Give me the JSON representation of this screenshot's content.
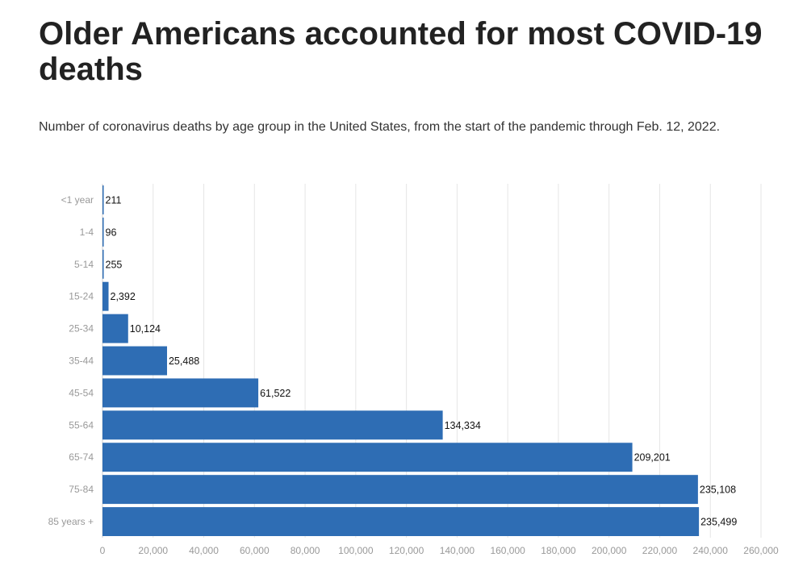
{
  "chart_data": {
    "type": "bar",
    "orientation": "horizontal",
    "title": "Older Americans accounted for most COVID-19 deaths",
    "subtitle": "Number of coronavirus deaths by age group in the United States, from the start of the pandemic through Feb. 12, 2022.",
    "categories": [
      "<1 year",
      "1-4",
      "5-14",
      "15-24",
      "25-34",
      "35-44",
      "45-54",
      "55-64",
      "65-74",
      "75-84",
      "85 years +"
    ],
    "values": [
      211,
      96,
      255,
      2392,
      10124,
      25488,
      61522,
      134334,
      209201,
      235108,
      235499
    ],
    "data_labels": [
      "211",
      "96",
      "255",
      "2,392",
      "10,124",
      "25,488",
      "61,522",
      "134,334",
      "209,201",
      "235,108",
      "235,499"
    ],
    "xlim": [
      0,
      260000
    ],
    "xticks": [
      0,
      20000,
      40000,
      60000,
      80000,
      100000,
      120000,
      140000,
      160000,
      180000,
      200000,
      220000,
      240000,
      260000
    ],
    "xtick_labels": [
      "0",
      "20,000",
      "40,000",
      "60,000",
      "80,000",
      "100,000",
      "120,000",
      "140,000",
      "160,000",
      "180,000",
      "200,000",
      "220,000",
      "240,000",
      "260,000"
    ],
    "grid": true,
    "legend": "none",
    "bar_color": "#2e6db4"
  }
}
